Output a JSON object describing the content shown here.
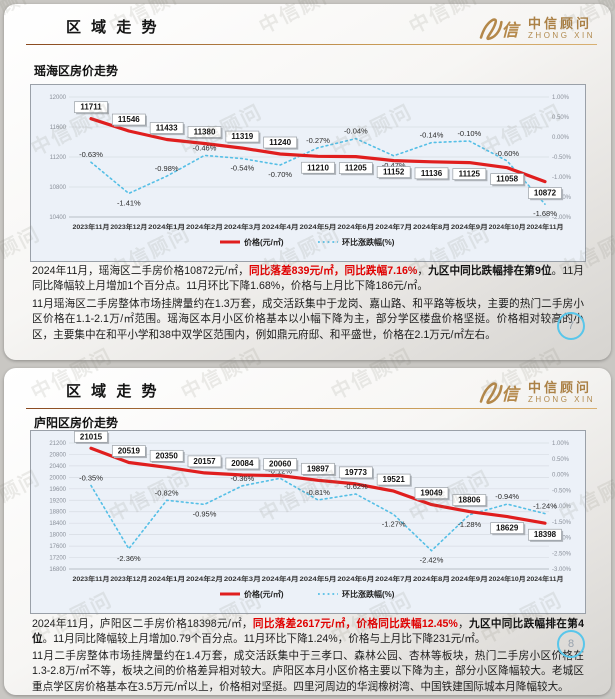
{
  "brand": {
    "logo_cn": "中信顾问",
    "logo_en": "ZHONG XIN"
  },
  "watermark": "中信顾问",
  "slides": [
    {
      "header_title": "区 域 走 势",
      "subtitle": "瑶海区房价走势",
      "page_number": "7",
      "paragraphs": [
        {
          "segments": [
            {
              "style": "normal",
              "text": "2024年11月，瑶海区二手房价格10872元/㎡，"
            },
            {
              "style": "red",
              "text": "同比落差839元/㎡，同比跌幅7.16%"
            },
            {
              "style": "normal",
              "text": "，"
            },
            {
              "style": "bold",
              "text": "九区中同比跌幅排在第9位"
            },
            {
              "style": "normal",
              "text": "。11月同比降幅较上月增加1个百分点。11月环比下降1.68%，价格与上月比下降186元/㎡。"
            }
          ]
        },
        {
          "segments": [
            {
              "style": "normal",
              "text": "11月瑶海区二手房整体市场挂牌量约在1.3万套，成交活跃集中于龙岗、嘉山路、和平路等板块，主要的热门二手房小区价格在1.1-2.1万/㎡范围。瑶海区本月小区价格基本以小幅下降为主，部分学区楼盘价格坚挺。价格相对较高的小区，主要集中在和平小学和38中双学区范围内，例如鼎元府邸、和平盛世，价格在2.1万元/㎡左右。"
            }
          ]
        }
      ]
    },
    {
      "header_title": "区 域 走 势",
      "subtitle": "庐阳区房价走势",
      "page_number": "8",
      "paragraphs": [
        {
          "segments": [
            {
              "style": "normal",
              "text": "2024年11月，庐阳区二手房价格18398元/㎡，"
            },
            {
              "style": "red",
              "text": "同比落差2617元/㎡，价格同比跌幅12.45%"
            },
            {
              "style": "normal",
              "text": "，"
            },
            {
              "style": "bold",
              "text": "九区中同比跌幅排在第4位"
            },
            {
              "style": "normal",
              "text": "。11月同比降幅较上月增加0.79个百分点。11月环比下降1.24%，价格与上月比下降231元/㎡。"
            }
          ]
        },
        {
          "segments": [
            {
              "style": "normal",
              "text": "11月二手房整体市场挂牌量约在1.4万套，成交活跃集中于三孝口、森林公园、杏林等板块，热门二手房小区价格在1.3-2.8万/㎡不等，板块之间的价格差异相对较大。庐阳区本月小区价格主要以下降为主，部分小区降幅较大。老城区重点学区房价格基本在3.5万元/㎡以上，价格相对坚挺。四里河周边的华润橡树湾、中国铁建国际城本月降幅较大。"
            }
          ]
        }
      ]
    }
  ],
  "chart_data": [
    {
      "type": "line",
      "title": "瑶海区房价走势",
      "x": [
        "2023年11月",
        "2023年12月",
        "2024年1月",
        "2024年2月",
        "2024年3月",
        "2024年4月",
        "2024年5月",
        "2024年6月",
        "2024年7月",
        "2024年8月",
        "2024年9月",
        "2024年10月",
        "2024年11月"
      ],
      "series": [
        {
          "name": "价格(元/㎡)",
          "axis": "left",
          "color": "#e01e1e",
          "line": "solid",
          "values": [
            11711,
            11546,
            11433,
            11380,
            11319,
            11240,
            11210,
            11205,
            11152,
            11136,
            11125,
            11058,
            10872
          ],
          "label_side": [
            "above",
            "above",
            "above",
            "above",
            "above",
            "above",
            "below",
            "below",
            "below",
            "below",
            "below",
            "below",
            "below"
          ]
        },
        {
          "name": "环比涨跌幅(%)",
          "axis": "right",
          "color": "#55bfe6",
          "line": "dotted",
          "format": "percent",
          "values": [
            -0.63,
            -1.41,
            -0.98,
            -0.46,
            -0.54,
            -0.7,
            -0.27,
            -0.04,
            -0.47,
            -0.14,
            -0.1,
            -0.6,
            -1.68
          ],
          "label_side": [
            "above",
            "below",
            "above",
            "above",
            "below",
            "below",
            "above",
            "above",
            "below",
            "above",
            "above",
            "above",
            "below"
          ]
        }
      ],
      "left_axis": {
        "min": 10400,
        "max": 12000,
        "step": 400
      },
      "right_axis": {
        "min": -2.0,
        "max": 1.0,
        "step": 0.5,
        "suffix": "%"
      },
      "grid": true,
      "legend_position": "bottom"
    },
    {
      "type": "line",
      "title": "庐阳区房价走势",
      "x": [
        "2023年11月",
        "2023年12月",
        "2024年1月",
        "2024年2月",
        "2024年3月",
        "2024年4月",
        "2024年5月",
        "2024年6月",
        "2024年7月",
        "2024年8月",
        "2024年9月",
        "2024年10月",
        "2024年11月"
      ],
      "series": [
        {
          "name": "价格(元/㎡)",
          "axis": "left",
          "color": "#e01e1e",
          "line": "solid",
          "values": [
            21015,
            20519,
            20350,
            20157,
            20084,
            20060,
            19897,
            19773,
            19521,
            19049,
            18806,
            18629,
            18398
          ],
          "label_side": [
            "above",
            "above",
            "above",
            "above",
            "above",
            "above",
            "above",
            "above",
            "above",
            "above",
            "above",
            "below",
            "below"
          ]
        },
        {
          "name": "环比涨跌幅(%)",
          "axis": "right",
          "color": "#55bfe6",
          "line": "dotted",
          "format": "percent",
          "values": [
            -0.35,
            -2.36,
            -0.82,
            -0.95,
            -0.36,
            -0.12,
            -0.81,
            -0.62,
            -1.27,
            -2.42,
            -1.28,
            -0.94,
            -1.24
          ],
          "label_side": [
            "above",
            "below",
            "above",
            "below",
            "above",
            "above",
            "above",
            "above",
            "below",
            "below",
            "below",
            "above",
            "above"
          ]
        }
      ],
      "left_axis": {
        "min": 16800,
        "max": 21200,
        "step": 400
      },
      "right_axis": {
        "min": -3.0,
        "max": 1.0,
        "step": 0.5,
        "suffix": "%"
      },
      "grid": true,
      "legend_position": "bottom"
    }
  ]
}
